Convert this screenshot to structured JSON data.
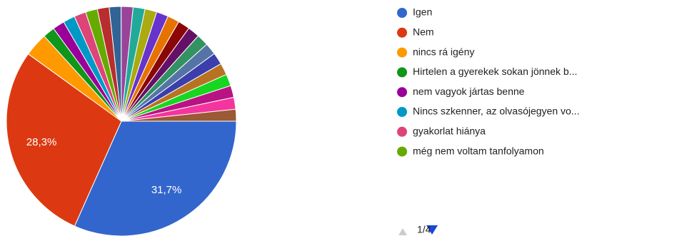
{
  "chart_data": {
    "type": "pie",
    "categories": [
      "Igen",
      "Nem",
      "nincs rá igény",
      "Hirtelen a gyerekek sokan jönnek b...",
      "nem vagyok jártas benne",
      "Nincs szkenner, az olvasójegyen vo...",
      "gyakorlat hiánya",
      "még nem voltam tanfolyamon",
      null,
      null,
      null,
      null,
      null,
      null,
      null,
      null,
      null,
      null,
      null,
      null,
      null,
      null,
      null,
      null,
      null
    ],
    "values": [
      31.7,
      28.3,
      3.33,
      1.67,
      1.67,
      1.67,
      1.67,
      1.67,
      1.67,
      1.67,
      1.67,
      1.67,
      1.67,
      1.67,
      1.67,
      1.67,
      1.67,
      1.67,
      1.67,
      1.67,
      1.67,
      1.67,
      1.67,
      1.67,
      1.67
    ],
    "value_labels": [
      "31,7%",
      "28,3%",
      null,
      null,
      null,
      null,
      null,
      null,
      null,
      null,
      null,
      null,
      null,
      null,
      null,
      null,
      null,
      null,
      null,
      null,
      null,
      null,
      null,
      null,
      null
    ],
    "colors": [
      "#3366cc",
      "#dc3912",
      "#ff9900",
      "#109618",
      "#990099",
      "#0099c6",
      "#dd4477",
      "#66aa00",
      "#b82e2e",
      "#316395",
      "#994499",
      "#22aa99",
      "#aaaa11",
      "#6633cc",
      "#e67300",
      "#8b0707",
      "#651067",
      "#329262",
      "#5574a6",
      "#3b3eac",
      "#b77322",
      "#16d620",
      "#b91383",
      "#f4359e",
      "#9c5935"
    ],
    "legend_page": "1/4"
  }
}
